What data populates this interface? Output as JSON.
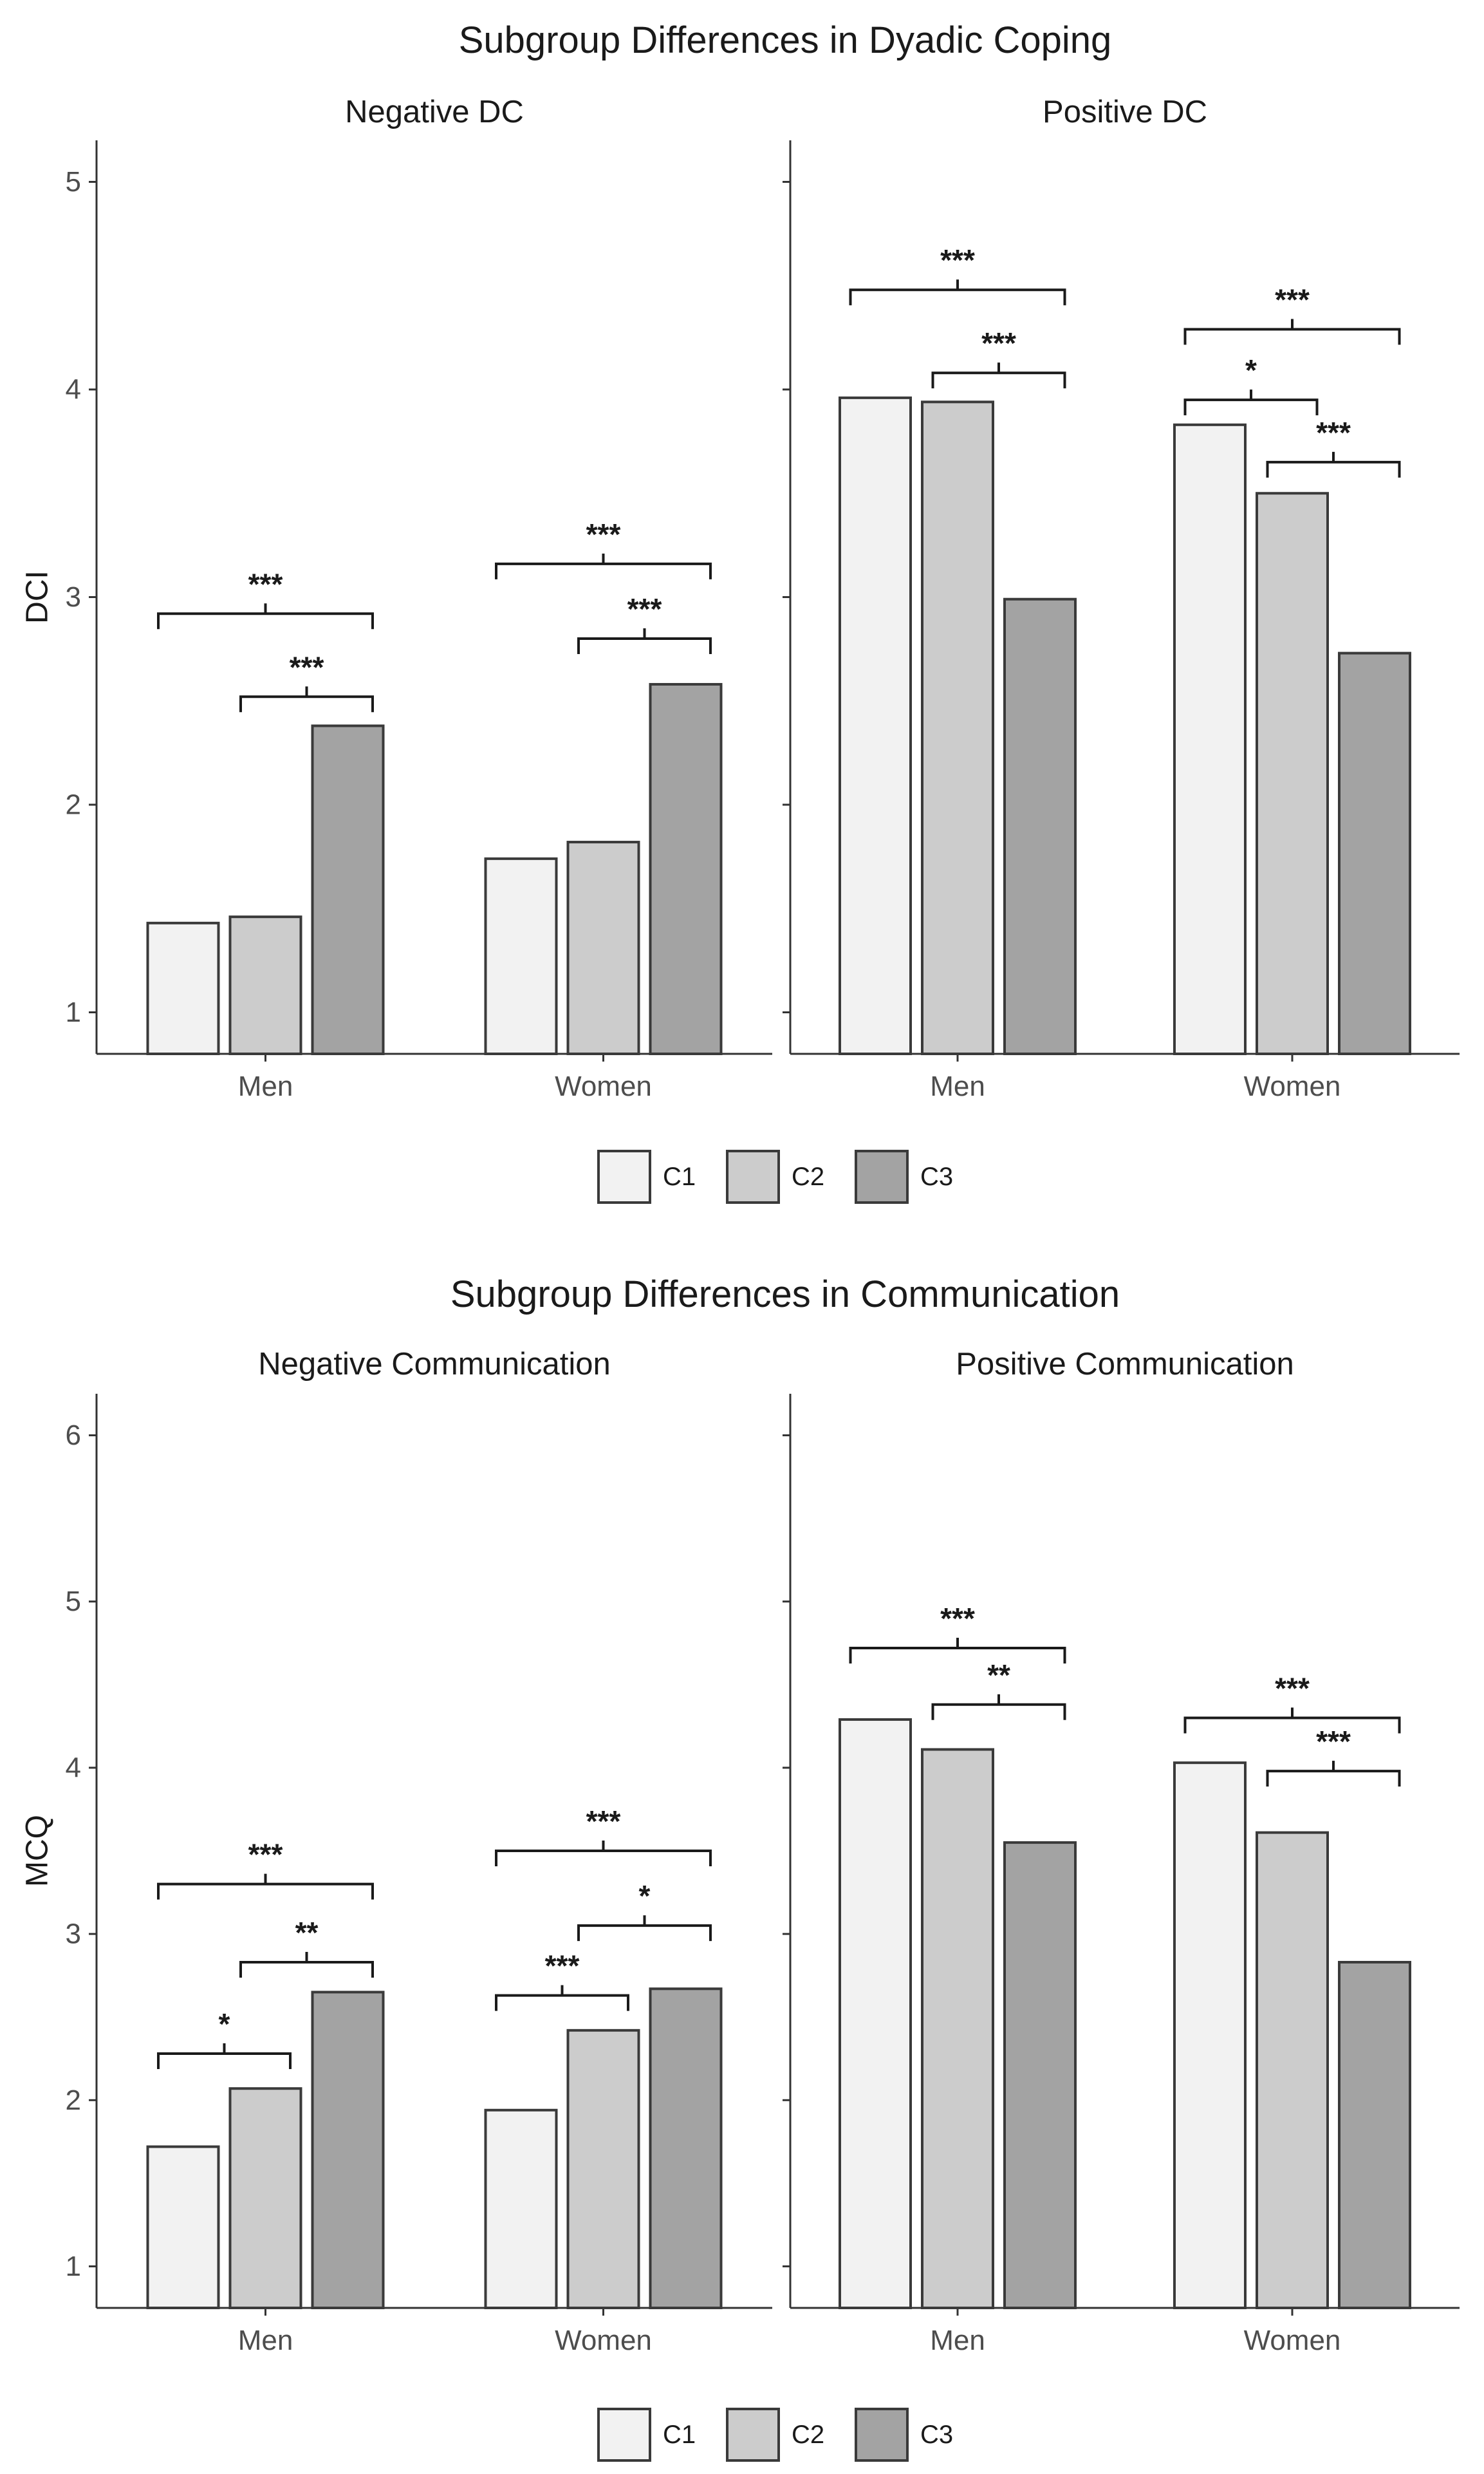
{
  "chart_data": [
    {
      "type": "bar",
      "title": "Subgroup Differences in Dyadic Coping",
      "ylabel": "DCI",
      "ylim": [
        0.8,
        5.2
      ],
      "yticks": [
        "1",
        "2",
        "3",
        "4",
        "5"
      ],
      "categories": [
        "Men",
        "Women"
      ],
      "legend": {
        "position": "bottom",
        "entries": [
          "C1",
          "C2",
          "C3"
        ]
      },
      "colors": [
        "#f2f2f2",
        "#cccccc",
        "#a3a3a3"
      ],
      "panels": [
        {
          "label": "Negative DC",
          "series": [
            {
              "name": "C1",
              "values": [
                1.43,
                1.74
              ]
            },
            {
              "name": "C2",
              "values": [
                1.46,
                1.82
              ]
            },
            {
              "name": "C3",
              "values": [
                2.38,
                2.58
              ]
            }
          ],
          "significance": [
            {
              "category": "Men",
              "from": "C1",
              "to": "C3",
              "label": "***",
              "y": 2.92
            },
            {
              "category": "Men",
              "from": "C2",
              "to": "C3",
              "label": "***",
              "y": 2.52
            },
            {
              "category": "Women",
              "from": "C1",
              "to": "C3",
              "label": "***",
              "y": 3.16
            },
            {
              "category": "Women",
              "from": "C2",
              "to": "C3",
              "label": "***",
              "y": 2.8
            }
          ]
        },
        {
          "label": "Positive DC",
          "series": [
            {
              "name": "C1",
              "values": [
                3.96,
                3.83
              ]
            },
            {
              "name": "C2",
              "values": [
                3.94,
                3.5
              ]
            },
            {
              "name": "C3",
              "values": [
                2.99,
                2.73
              ]
            }
          ],
          "significance": [
            {
              "category": "Men",
              "from": "C1",
              "to": "C3",
              "label": "***",
              "y": 4.48
            },
            {
              "category": "Men",
              "from": "C2",
              "to": "C3",
              "label": "***",
              "y": 4.08
            },
            {
              "category": "Women",
              "from": "C1",
              "to": "C3",
              "label": "***",
              "y": 4.29
            },
            {
              "category": "Women",
              "from": "C1",
              "to": "C2",
              "label": "*",
              "y": 3.95
            },
            {
              "category": "Women",
              "from": "C2",
              "to": "C3",
              "label": "***",
              "y": 3.65
            }
          ]
        }
      ]
    },
    {
      "type": "bar",
      "title": "Subgroup Differences in Communication",
      "ylabel": "MCQ",
      "ylim": [
        0.75,
        6.25
      ],
      "yticks": [
        "1",
        "2",
        "3",
        "4",
        "5",
        "6"
      ],
      "categories": [
        "Men",
        "Women"
      ],
      "legend": {
        "position": "bottom",
        "entries": [
          "C1",
          "C2",
          "C3"
        ]
      },
      "colors": [
        "#f2f2f2",
        "#cccccc",
        "#a3a3a3"
      ],
      "panels": [
        {
          "label": "Negative Communication",
          "series": [
            {
              "name": "C1",
              "values": [
                1.72,
                1.94
              ]
            },
            {
              "name": "C2",
              "values": [
                2.07,
                2.42
              ]
            },
            {
              "name": "C3",
              "values": [
                2.65,
                2.67
              ]
            }
          ],
          "significance": [
            {
              "category": "Men",
              "from": "C1",
              "to": "C3",
              "label": "***",
              "y": 3.3
            },
            {
              "category": "Men",
              "from": "C2",
              "to": "C3",
              "label": "**",
              "y": 2.83
            },
            {
              "category": "Men",
              "from": "C1",
              "to": "C2",
              "label": "*",
              "y": 2.28
            },
            {
              "category": "Women",
              "from": "C1",
              "to": "C3",
              "label": "***",
              "y": 3.5
            },
            {
              "category": "Women",
              "from": "C2",
              "to": "C3",
              "label": "*",
              "y": 3.05
            },
            {
              "category": "Women",
              "from": "C1",
              "to": "C2",
              "label": "***",
              "y": 2.63
            }
          ]
        },
        {
          "label": "Positive Communication",
          "series": [
            {
              "name": "C1",
              "values": [
                4.29,
                4.03
              ]
            },
            {
              "name": "C2",
              "values": [
                4.11,
                3.61
              ]
            },
            {
              "name": "C3",
              "values": [
                3.55,
                2.83
              ]
            }
          ],
          "significance": [
            {
              "category": "Men",
              "from": "C1",
              "to": "C3",
              "label": "***",
              "y": 4.72
            },
            {
              "category": "Men",
              "from": "C2",
              "to": "C3",
              "label": "**",
              "y": 4.38
            },
            {
              "category": "Women",
              "from": "C1",
              "to": "C3",
              "label": "***",
              "y": 4.3
            },
            {
              "category": "Women",
              "from": "C2",
              "to": "C3",
              "label": "***",
              "y": 3.98
            }
          ]
        }
      ]
    }
  ]
}
